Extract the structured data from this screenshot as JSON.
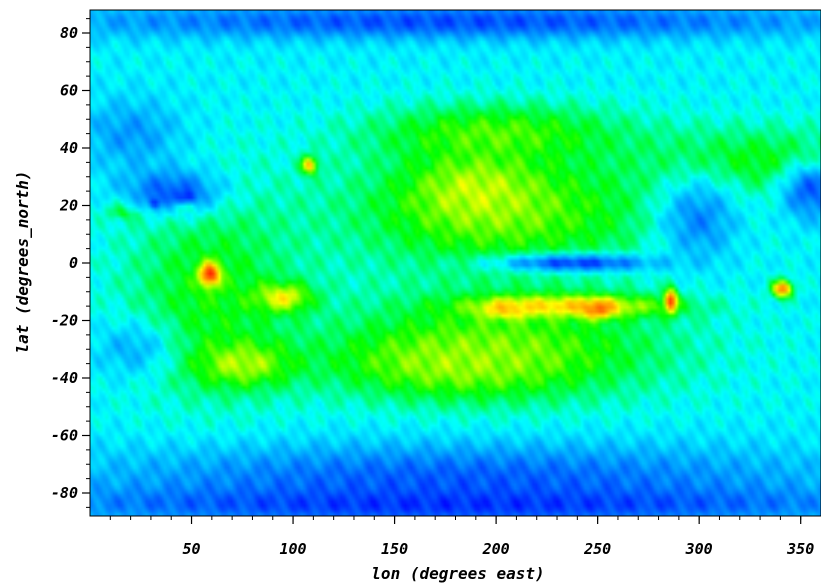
{
  "chart_data": {
    "type": "heatmap",
    "title": "",
    "xlabel": "lon (degrees east)",
    "ylabel": "lat (degrees_north)",
    "xlim": [
      0,
      360
    ],
    "ylim": [
      -88,
      88
    ],
    "x_ticks": [
      50,
      100,
      150,
      200,
      250,
      300,
      350
    ],
    "y_ticks": [
      80,
      60,
      40,
      20,
      0,
      -20,
      -40,
      -60,
      -80
    ],
    "x_tick_labels": [
      "50",
      "100",
      "150",
      "200",
      "250",
      "300",
      "350"
    ],
    "y_tick_labels": [
      "80",
      "60",
      "40",
      "20",
      "0",
      "-20",
      "-40",
      "-60",
      "-80"
    ],
    "colormap": [
      "#0000ff",
      "#0080ff",
      "#00ffff",
      "#00ff00",
      "#ffff00",
      "#ff8000",
      "#ff0000"
    ],
    "value_range": [
      0,
      1
    ],
    "background": 0.32,
    "features": [
      {
        "lon": 205,
        "lat": 18,
        "rlon": 80,
        "rlat": 22,
        "value": 0.56
      },
      {
        "lon": 200,
        "lat": -30,
        "rlon": 85,
        "rlat": 18,
        "value": 0.56
      },
      {
        "lon": 60,
        "lat": -10,
        "rlon": 42,
        "rlat": 35,
        "value": 0.5
      },
      {
        "lon": 330,
        "lat": 35,
        "rlon": 60,
        "rlat": 12,
        "value": 0.5
      },
      {
        "lon": 200,
        "lat": 45,
        "rlon": 60,
        "rlat": 10,
        "value": 0.55
      },
      {
        "lon": 190,
        "lat": 25,
        "rlon": 30,
        "rlat": 12,
        "value": 0.63
      },
      {
        "lon": 180,
        "lat": -35,
        "rlon": 50,
        "rlat": 10,
        "value": 0.6
      },
      {
        "lon": 75,
        "lat": -35,
        "rlon": 25,
        "rlat": 8,
        "value": 0.62
      },
      {
        "lon": 235,
        "lat": -15,
        "rlon": 50,
        "rlat": 4,
        "value": 0.72
      },
      {
        "lon": 250,
        "lat": -16,
        "rlon": 8,
        "rlat": 3,
        "value": 0.86
      },
      {
        "lon": 205,
        "lat": -16,
        "rlon": 12,
        "rlat": 3,
        "value": 0.74
      },
      {
        "lon": 95,
        "lat": -12,
        "rlon": 14,
        "rlat": 5,
        "value": 0.68
      },
      {
        "lon": 59,
        "lat": -4,
        "rlon": 5,
        "rlat": 4,
        "value": 0.95
      },
      {
        "lon": 286,
        "lat": -13,
        "rlon": 3,
        "rlat": 4,
        "value": 0.95
      },
      {
        "lon": 341,
        "lat": -9,
        "rlon": 5,
        "rlat": 3,
        "value": 0.85
      },
      {
        "lon": 18,
        "lat": 18,
        "rlon": 6,
        "rlat": 2,
        "value": 0.85
      },
      {
        "lon": 45,
        "lat": 20,
        "rlon": 5,
        "rlat": 2,
        "value": 0.85
      },
      {
        "lon": 108,
        "lat": 34,
        "rlon": 4,
        "rlat": 3,
        "value": 0.75
      },
      {
        "lon": 25,
        "lat": 19,
        "rlon": 18,
        "rlat": 5,
        "value": 0.45
      },
      {
        "lon": 240,
        "lat": 0,
        "rlon": 40,
        "rlat": 3,
        "value": 0.08
      },
      {
        "lon": 20,
        "lat": 45,
        "rlon": 25,
        "rlat": 12,
        "value": 0.2
      },
      {
        "lon": 40,
        "lat": 25,
        "rlon": 25,
        "rlat": 8,
        "value": 0.12
      },
      {
        "lon": 32,
        "lat": 21,
        "rlon": 3,
        "rlat": 2,
        "value": 0.03
      },
      {
        "lon": 48,
        "lat": 23,
        "rlon": 4,
        "rlat": 2,
        "value": 0.03
      },
      {
        "lon": 300,
        "lat": 15,
        "rlon": 20,
        "rlat": 15,
        "value": 0.18
      },
      {
        "lon": 355,
        "lat": 25,
        "rlon": 15,
        "rlat": 10,
        "value": 0.12
      },
      {
        "lon": 20,
        "lat": -30,
        "rlon": 20,
        "rlat": 10,
        "value": 0.24
      },
      {
        "lon": 180,
        "lat": -75,
        "rlon": 180,
        "rlat": 12,
        "value": 0.12
      },
      {
        "lon": 180,
        "lat": -84,
        "rlon": 200,
        "rlat": 6,
        "value": 0.06
      },
      {
        "lon": 180,
        "lat": 84,
        "rlon": 200,
        "rlat": 6,
        "value": 0.1
      }
    ]
  }
}
